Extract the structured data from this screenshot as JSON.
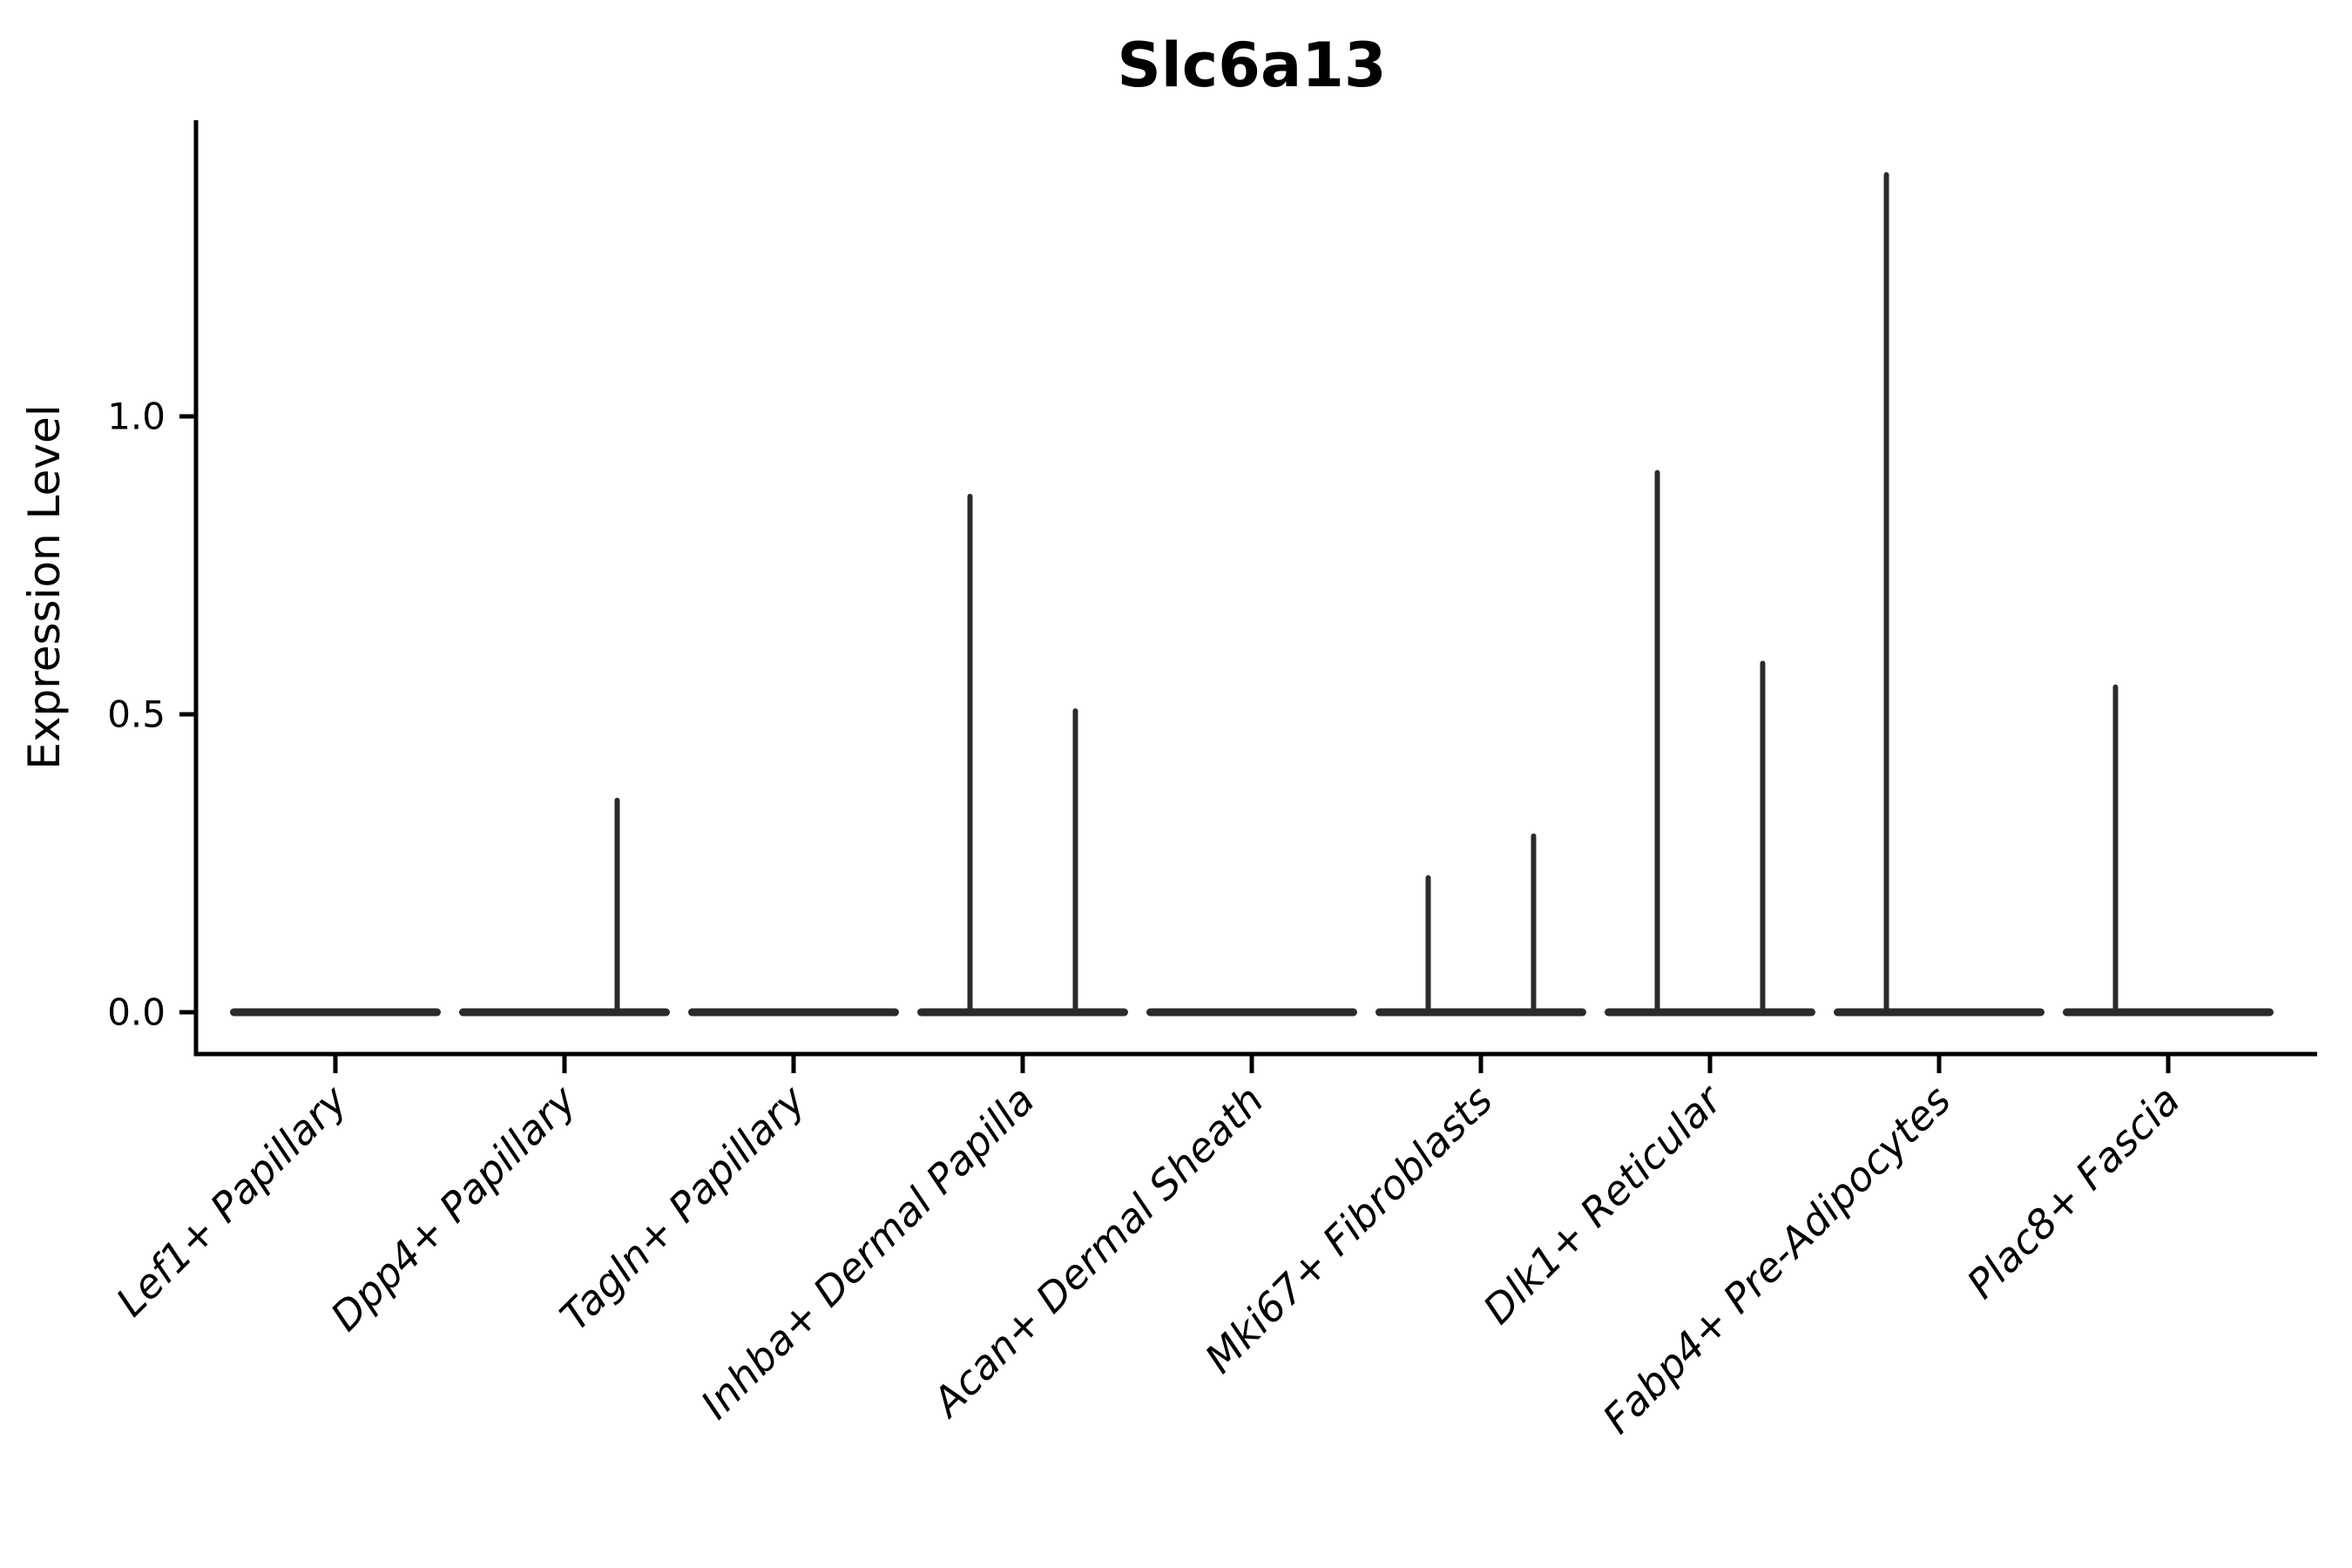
{
  "figure": {
    "title": "Slc6a13",
    "ylabel": "Expression Level",
    "background_color": "#ffffff",
    "axis_color": "#000000",
    "violin_color": "#2b2b2b"
  },
  "chart_data": {
    "type": "violin",
    "title": "Slc6a13",
    "xlabel": "",
    "ylabel": "Expression Level",
    "ylim": [
      -0.07,
      1.49
    ],
    "grid": false,
    "legend": "none",
    "yticks": [
      {
        "value": 0.0,
        "label": "0.0"
      },
      {
        "value": 0.5,
        "label": "0.5"
      },
      {
        "value": 1.0,
        "label": "1.0"
      }
    ],
    "categories": [
      "Lef1+ Papillary",
      "Dpp4+ Papillary",
      "Tagln+ Papillary",
      "Inhba+ Dermal Papilla",
      "Acan+ Dermal Sheath",
      "Mki67+ Fibroblasts",
      "Dlk1+ Reticular",
      "Fabp4+ Pre-Adipocytes",
      "Plac8+ Fascia"
    ],
    "violin_base_half_width": 0.46,
    "violins": [
      {
        "category": "Lef1+ Papillary",
        "baseline_value": 0.0,
        "spikes": []
      },
      {
        "category": "Dpp4+ Papillary",
        "baseline_value": 0.0,
        "spikes": [
          {
            "offset": 0.23,
            "max": 0.36
          }
        ]
      },
      {
        "category": "Tagln+ Papillary",
        "baseline_value": 0.0,
        "spikes": []
      },
      {
        "category": "Inhba+ Dermal Papilla",
        "baseline_value": 0.0,
        "spikes": [
          {
            "offset": -0.23,
            "max": 0.87
          },
          {
            "offset": 0.23,
            "max": 0.51
          }
        ]
      },
      {
        "category": "Acan+ Dermal Sheath",
        "baseline_value": 0.0,
        "spikes": []
      },
      {
        "category": "Mki67+ Fibroblasts",
        "baseline_value": 0.0,
        "spikes": [
          {
            "offset": -0.23,
            "max": 0.23
          },
          {
            "offset": 0.23,
            "max": 0.3
          }
        ]
      },
      {
        "category": "Dlk1+ Reticular",
        "baseline_value": 0.0,
        "spikes": [
          {
            "offset": -0.23,
            "max": 0.91
          },
          {
            "offset": 0.23,
            "max": 0.59
          }
        ]
      },
      {
        "category": "Fabp4+ Pre-Adipocytes",
        "baseline_value": 0.0,
        "spikes": [
          {
            "offset": -0.23,
            "max": 1.41
          }
        ]
      },
      {
        "category": "Plac8+ Fascia",
        "baseline_value": 0.0,
        "spikes": [
          {
            "offset": -0.23,
            "max": 0.55
          }
        ]
      }
    ],
    "colors": {
      "violin": "#2b2b2b",
      "axis": "#000000",
      "text": "#000000",
      "background": "#ffffff"
    }
  }
}
